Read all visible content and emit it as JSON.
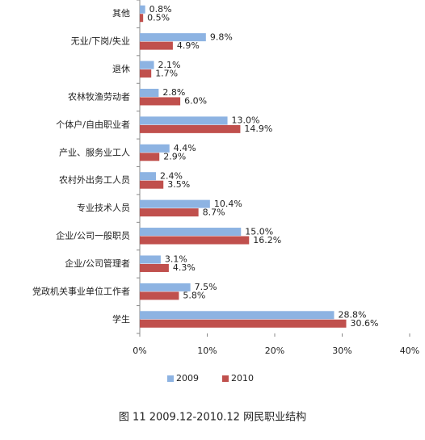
{
  "chart_data": {
    "type": "hbar",
    "title": "图 11 2009.12-2010.12 网民职业结构",
    "categories": [
      "其他",
      "无业/下岗/失业",
      "退休",
      "农林牧渔劳动者",
      "个体户/自由职业者",
      "产业、服务业工人",
      "农村外出务工人员",
      "专业技术人员",
      "企业/公司一般职员",
      "企业/公司管理者",
      "党政机关事业单位工作者",
      "学生"
    ],
    "series": [
      {
        "name": "2009",
        "color": "#8db3e2",
        "values": [
          0.8,
          9.8,
          2.1,
          2.8,
          13.0,
          4.4,
          2.4,
          10.4,
          15.0,
          3.1,
          7.5,
          28.8
        ],
        "value_labels": [
          "0.8%",
          "9.8%",
          "2.1%",
          "2.8%",
          "13.0%",
          "4.4%",
          "2.4%",
          "10.4%",
          "15.0%",
          "3.1%",
          "7.5%",
          "28.8%"
        ]
      },
      {
        "name": "2010",
        "color": "#c0504d",
        "values": [
          0.5,
          4.9,
          1.7,
          6.0,
          14.9,
          2.9,
          3.5,
          8.7,
          16.2,
          4.3,
          5.8,
          30.6
        ],
        "value_labels": [
          "0.5%",
          "4.9%",
          "1.7%",
          "6.0%",
          "14.9%",
          "2.9%",
          "3.5%",
          "8.7%",
          "16.2%",
          "4.3%",
          "5.8%",
          "30.6%"
        ]
      }
    ],
    "xlim": [
      0,
      40
    ],
    "xticks": [
      {
        "value": 0,
        "label": "0%"
      },
      {
        "value": 10,
        "label": "10%"
      },
      {
        "value": 20,
        "label": "20%"
      },
      {
        "value": 30,
        "label": "30%"
      },
      {
        "value": 40,
        "label": "40%"
      }
    ],
    "legend": "bottom"
  }
}
